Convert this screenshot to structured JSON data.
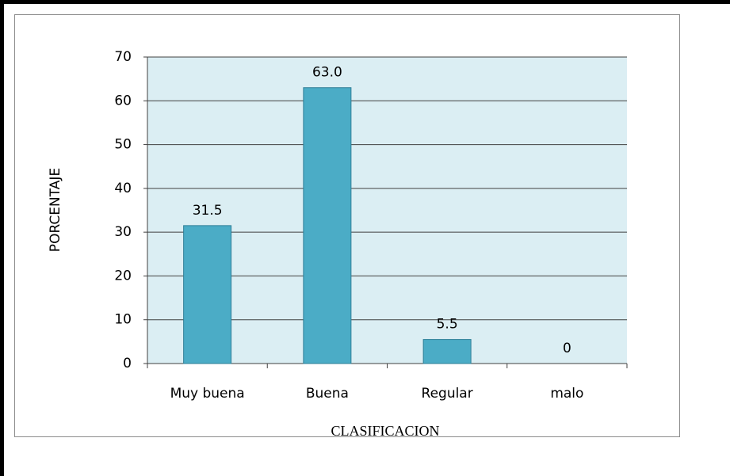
{
  "chart_data": {
    "type": "bar",
    "x_label": "CLASIFICACION",
    "y_label": "PORCENTAJE",
    "categories": [
      "Muy buena",
      "Buena",
      "Regular",
      "malo"
    ],
    "values": [
      31.5,
      63.0,
      5.5,
      0
    ],
    "value_labels": [
      "31.5",
      "63.0",
      "5.5",
      "0"
    ],
    "color": "#4bacc6",
    "ylim": [
      0,
      70
    ],
    "yticks": [
      0,
      10,
      20,
      30,
      40,
      50,
      60,
      70
    ],
    "grid": true
  }
}
